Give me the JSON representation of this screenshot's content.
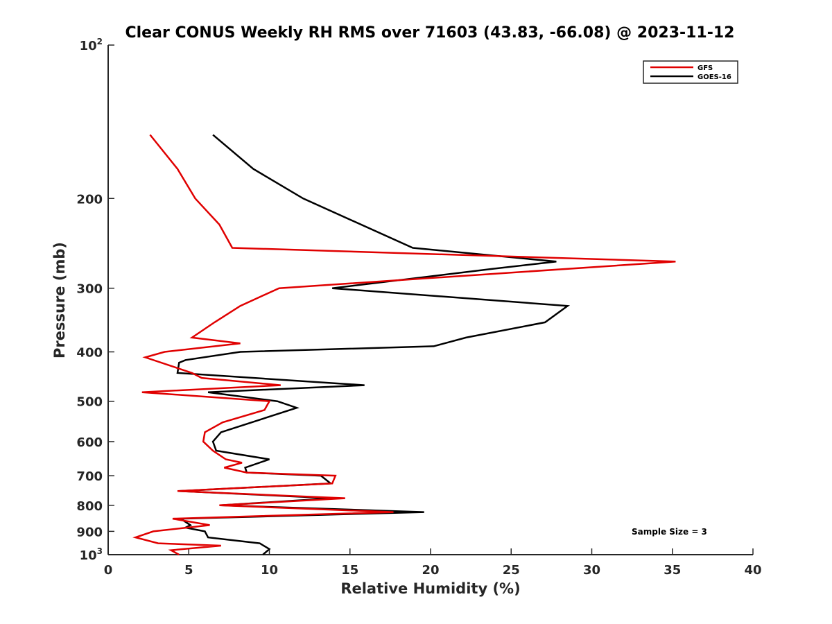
{
  "chart_data": {
    "type": "line",
    "title": "Clear CONUS Weekly RH RMS over 71603 (43.83, -66.08) @ 2023-11-12",
    "xlabel": "Relative Humidity (%)",
    "ylabel": "Pressure (mb)",
    "xlim": [
      0,
      40
    ],
    "ylim": [
      100,
      1000
    ],
    "y_scale": "log",
    "y_reversed": true,
    "x_ticks": [
      "0",
      "5",
      "10",
      "15",
      "20",
      "25",
      "30",
      "35",
      "40"
    ],
    "y_ticks": [
      {
        "value": 100,
        "base": "10",
        "exp": "2"
      },
      {
        "value": 200,
        "label": "200"
      },
      {
        "value": 300,
        "label": "300"
      },
      {
        "value": 400,
        "label": "400"
      },
      {
        "value": 500,
        "label": "500"
      },
      {
        "value": 600,
        "label": "600"
      },
      {
        "value": 700,
        "label": "700"
      },
      {
        "value": 800,
        "label": "800"
      },
      {
        "value": 900,
        "label": "900"
      },
      {
        "value": 1000,
        "base": "10",
        "exp": "3"
      }
    ],
    "grid": false,
    "legend_position": "top-right",
    "annotation": "Sample Size = 3",
    "series": [
      {
        "name": "GFS",
        "color": "#e00000",
        "points": [
          [
            2.6,
            150
          ],
          [
            4.3,
            175
          ],
          [
            5.4,
            200
          ],
          [
            6.9,
            225
          ],
          [
            7.7,
            250
          ],
          [
            35.2,
            266
          ],
          [
            10.6,
            300
          ],
          [
            8.2,
            325
          ],
          [
            6.6,
            350
          ],
          [
            5.2,
            375
          ],
          [
            8.2,
            385
          ],
          [
            3.5,
            400
          ],
          [
            2.3,
            410
          ],
          [
            5.2,
            440
          ],
          [
            5.8,
            450
          ],
          [
            10.7,
            465
          ],
          [
            2.1,
            480
          ],
          [
            10.0,
            500
          ],
          [
            9.7,
            520
          ],
          [
            7.1,
            550
          ],
          [
            6.0,
            575
          ],
          [
            5.9,
            600
          ],
          [
            6.5,
            625
          ],
          [
            7.3,
            650
          ],
          [
            8.3,
            660
          ],
          [
            7.2,
            675
          ],
          [
            8.6,
            690
          ],
          [
            14.1,
            700
          ],
          [
            13.9,
            725
          ],
          [
            4.3,
            750
          ],
          [
            14.7,
            775
          ],
          [
            6.9,
            800
          ],
          [
            17.7,
            825
          ],
          [
            4.0,
            850
          ],
          [
            6.3,
            875
          ],
          [
            2.8,
            900
          ],
          [
            1.7,
            925
          ],
          [
            3.1,
            950
          ],
          [
            7.0,
            960
          ],
          [
            3.9,
            980
          ],
          [
            4.4,
            1000
          ]
        ]
      },
      {
        "name": "GOES-16",
        "color": "#000000",
        "points": [
          [
            6.5,
            150
          ],
          [
            9.0,
            175
          ],
          [
            12.1,
            200
          ],
          [
            18.9,
            250
          ],
          [
            27.8,
            266
          ],
          [
            23.8,
            275
          ],
          [
            13.9,
            300
          ],
          [
            28.5,
            325
          ],
          [
            27.1,
            350
          ],
          [
            22.2,
            375
          ],
          [
            20.2,
            390
          ],
          [
            8.2,
            400
          ],
          [
            4.8,
            415
          ],
          [
            4.4,
            420
          ],
          [
            4.3,
            440
          ],
          [
            15.9,
            465
          ],
          [
            6.2,
            480
          ],
          [
            10.5,
            500
          ],
          [
            11.7,
            515
          ],
          [
            7.0,
            575
          ],
          [
            6.5,
            600
          ],
          [
            6.7,
            625
          ],
          [
            10.0,
            650
          ],
          [
            8.5,
            675
          ],
          [
            8.6,
            690
          ],
          [
            13.2,
            700
          ],
          [
            13.8,
            725
          ],
          [
            4.4,
            750
          ],
          [
            13.9,
            775
          ],
          [
            7.0,
            800
          ],
          [
            19.6,
            825
          ],
          [
            4.5,
            850
          ],
          [
            5.1,
            875
          ],
          [
            4.8,
            885
          ],
          [
            6.0,
            900
          ],
          [
            6.2,
            925
          ],
          [
            9.4,
            950
          ],
          [
            10.0,
            975
          ],
          [
            9.6,
            1000
          ]
        ]
      }
    ]
  }
}
